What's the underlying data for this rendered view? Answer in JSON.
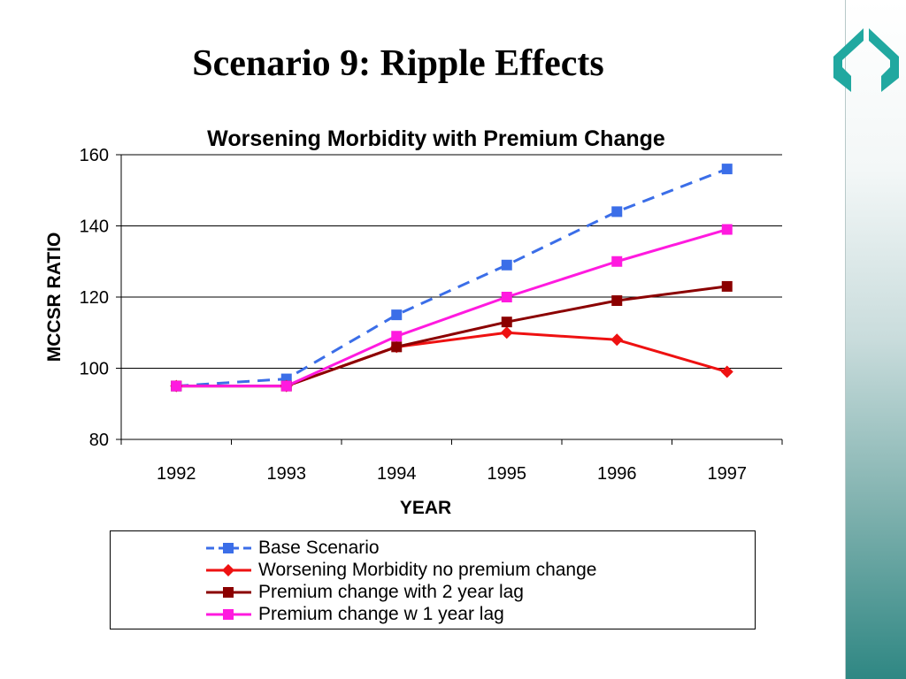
{
  "slide": {
    "title": "Scenario 9: Ripple Effects"
  },
  "chart_data": {
    "type": "line",
    "title": "Worsening Morbidity with  Premium Change",
    "xlabel": "YEAR",
    "ylabel": "MCCSR RATIO",
    "categories": [
      "1992",
      "1993",
      "1994",
      "1995",
      "1996",
      "1997"
    ],
    "ylim": [
      80,
      160
    ],
    "yticks": [
      80,
      100,
      120,
      140,
      160
    ],
    "grid": true,
    "legend_position": "bottom",
    "series": [
      {
        "name": "Base Scenario",
        "values": [
          95,
          97,
          115,
          129,
          144,
          156
        ],
        "color": "#3b6ee8",
        "marker": "square",
        "dashed": true
      },
      {
        "name": "Worsening Morbidity no premium change",
        "values": [
          95,
          95,
          106,
          110,
          108,
          99
        ],
        "color": "#ee1111",
        "marker": "diamond",
        "dashed": false
      },
      {
        "name": "Premium change with 2 year lag",
        "values": [
          95,
          95,
          106,
          113,
          119,
          123
        ],
        "color": "#8b0000",
        "marker": "square",
        "dashed": false
      },
      {
        "name": "Premium change w 1 year lag",
        "values": [
          95,
          95,
          109,
          120,
          130,
          139
        ],
        "color": "#ff1adf",
        "marker": "square",
        "dashed": false
      }
    ]
  }
}
